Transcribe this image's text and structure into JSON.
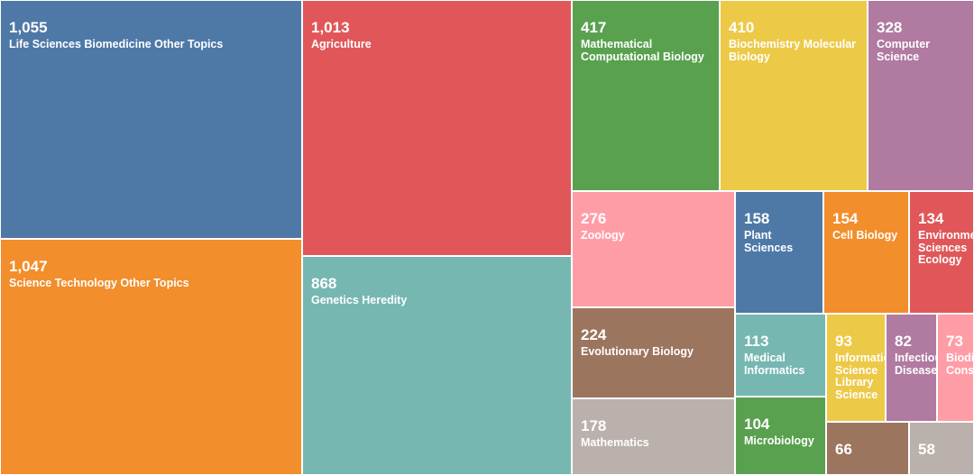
{
  "chart_data": {
    "type": "treemap",
    "nodes": [
      {
        "label": "Life Sciences Biomedicine Other Topics",
        "display_label": "Life Sciences Biomedicine Other Topics",
        "value": 1055,
        "value_text": "1,055",
        "color": "#4e79a7"
      },
      {
        "label": "Science Technology Other Topics",
        "display_label": "Science Technology Other Topics",
        "value": 1047,
        "value_text": "1,047",
        "color": "#f28e2b"
      },
      {
        "label": "Agriculture",
        "display_label": "Agriculture",
        "value": 1013,
        "value_text": "1,013",
        "color": "#e15759"
      },
      {
        "label": "Genetics Heredity",
        "display_label": "Genetics Heredity",
        "value": 868,
        "value_text": "868",
        "color": "#76b7b2"
      },
      {
        "label": "Mathematical Computational Biology",
        "display_label": "Mathematical\nComputational Biology",
        "value": 417,
        "value_text": "417",
        "color": "#59a14f"
      },
      {
        "label": "Biochemistry Molecular Biology",
        "display_label": "Biochemistry Molecular\nBiology",
        "value": 410,
        "value_text": "410",
        "color": "#edc948"
      },
      {
        "label": "Computer Science",
        "display_label": "Computer Science",
        "value": 328,
        "value_text": "328",
        "color": "#b07aa1"
      },
      {
        "label": "Zoology",
        "display_label": "Zoology",
        "value": 276,
        "value_text": "276",
        "color": "#ff9da7"
      },
      {
        "label": "Evolutionary Biology",
        "display_label": "Evolutionary Biology",
        "value": 224,
        "value_text": "224",
        "color": "#9c755f"
      },
      {
        "label": "Mathematics",
        "display_label": "Mathematics",
        "value": 178,
        "value_text": "178",
        "color": "#bab0ac"
      },
      {
        "label": "Plant Sciences",
        "display_label": "Plant\nSciences",
        "value": 158,
        "value_text": "158",
        "color": "#4e79a7"
      },
      {
        "label": "Cell Biology",
        "display_label": "Cell Biology",
        "value": 154,
        "value_text": "154",
        "color": "#f28e2b"
      },
      {
        "label": "Environmental Sciences Ecology",
        "display_label": "Environmental\nSciences\nEcology",
        "value": 134,
        "value_text": "134",
        "color": "#e15759"
      },
      {
        "label": "Medical Informatics",
        "display_label": "Medical\nInformatics",
        "value": 113,
        "value_text": "113",
        "color": "#76b7b2"
      },
      {
        "label": "Microbiology",
        "display_label": "Microbiology",
        "value": 104,
        "value_text": "104",
        "color": "#59a14f"
      },
      {
        "label": "Information Science Library Science",
        "display_label": "Information\nScience\nLibrary\nScience",
        "value": 93,
        "value_text": "93",
        "color": "#edc948"
      },
      {
        "label": "Infectious Diseases",
        "display_label": "Infectious\nDiseases",
        "value": 82,
        "value_text": "82",
        "color": "#b07aa1"
      },
      {
        "label": "Biodiversity Conservation",
        "display_label": "Biodiversity\nConservation",
        "value": 73,
        "value_text": "73",
        "color": "#ff9da7"
      },
      {
        "label": "",
        "display_label": "",
        "value": 66,
        "value_text": "66",
        "color": "#9c755f"
      },
      {
        "label": "",
        "display_label": "",
        "value": 58,
        "value_text": "58",
        "color": "#bab0ac"
      }
    ]
  }
}
